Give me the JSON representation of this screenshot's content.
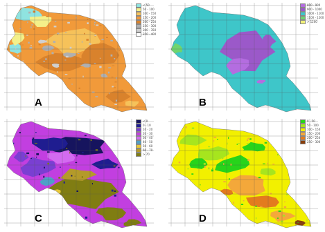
{
  "panels": [
    {
      "letter": "A",
      "legend": [
        {
          "label": "< 50",
          "color": "#8fe3e0"
        },
        {
          "label": "50 - 100",
          "color": "#f4f08a"
        },
        {
          "label": "100 - 150",
          "color": "#f6c25a"
        },
        {
          "label": "150 - 200",
          "color": "#f19a3a"
        },
        {
          "label": "200 - 250",
          "color": "#d9822c"
        },
        {
          "label": "250 - 300",
          "color": "#b0b0b0"
        },
        {
          "label": "300 - 350",
          "color": "#d0d0d0"
        },
        {
          "label": "350 - 400",
          "color": "#ffffff"
        }
      ]
    },
    {
      "letter": "B",
      "legend": [
        {
          "label": "800 - 900",
          "color": "#b46de0"
        },
        {
          "label": "900 - 1000",
          "color": "#9b59c9"
        },
        {
          "label": "1000 - 1100",
          "color": "#3ec6c9"
        },
        {
          "label": "1100 - 1200",
          "color": "#6fd46f"
        },
        {
          "label": "> 1200",
          "color": "#f2f27a"
        }
      ]
    },
    {
      "letter": "C",
      "legend": [
        {
          "label": "< 0",
          "color": "#16145e"
        },
        {
          "label": "0 - 10",
          "color": "#1f1d90"
        },
        {
          "label": "10 - 20",
          "color": "#7a3fd2"
        },
        {
          "label": "20 - 30",
          "color": "#c23fe0"
        },
        {
          "label": "30 - 40",
          "color": "#d36bf0"
        },
        {
          "label": "40 - 50",
          "color": "#4fa0c8"
        },
        {
          "label": "50 - 60",
          "color": "#e7c83a"
        },
        {
          "label": "60 - 70",
          "color": "#b49a2a"
        },
        {
          "label": "> 70",
          "color": "#807d12"
        }
      ]
    },
    {
      "letter": "D",
      "legend": [
        {
          "label": "0 - 50",
          "color": "#27d41a"
        },
        {
          "label": "50 - 100",
          "color": "#a7e51e"
        },
        {
          "label": "100 - 150",
          "color": "#f2f000"
        },
        {
          "label": "150 - 200",
          "color": "#f4a83a"
        },
        {
          "label": "200 - 250",
          "color": "#e37b1e"
        },
        {
          "label": "250 - 300",
          "color": "#8a3f0c"
        }
      ]
    }
  ]
}
